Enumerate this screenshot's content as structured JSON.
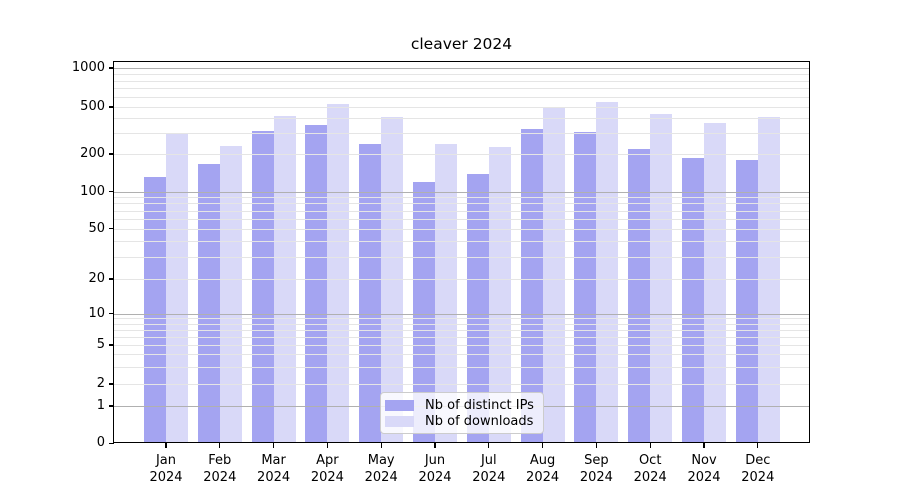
{
  "title": "cleaver 2024",
  "legend": {
    "items": [
      {
        "label": "Nb of distinct IPs",
        "color": "#a4a4f1"
      },
      {
        "label": "Nb of downloads",
        "color": "#d9d9f8"
      }
    ]
  },
  "chart_data": {
    "type": "bar",
    "title": "cleaver 2024",
    "categories": [
      "Jan",
      "Feb",
      "Mar",
      "Apr",
      "May",
      "Jun",
      "Jul",
      "Aug",
      "Sep",
      "Oct",
      "Nov",
      "Dec"
    ],
    "year": "2024",
    "series": [
      {
        "name": "Nb of distinct IPs",
        "color": "#a4a4f1",
        "values": [
          131,
          165,
          315,
          352,
          242,
          119,
          138,
          327,
          305,
          222,
          185,
          179
        ]
      },
      {
        "name": "Nb of downloads",
        "color": "#d9d9f8",
        "values": [
          300,
          232,
          420,
          532,
          415,
          243,
          230,
          496,
          545,
          438,
          366,
          414
        ]
      }
    ],
    "yscale": "symlog",
    "ylim": [
      0,
      1000
    ],
    "yticks": [
      1000,
      500,
      200,
      100,
      50,
      20,
      10,
      5,
      2,
      1,
      0
    ],
    "grid": true,
    "legend_position": "lower center",
    "colors": {
      "major_grid": "#b0b0b0",
      "minor_grid": "#e5e5e5",
      "text": "#000000",
      "spine": "#000000"
    }
  }
}
